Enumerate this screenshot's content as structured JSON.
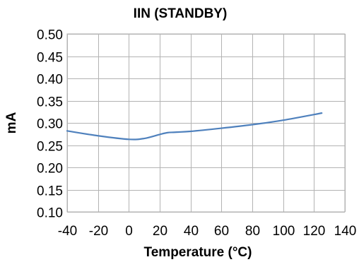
{
  "chart_data": {
    "type": "line",
    "title": "IIN (STANDBY)",
    "xlabel": "Temperature (°C)",
    "ylabel": "mA",
    "xlim": [
      -40,
      140
    ],
    "ylim": [
      0.1,
      0.5
    ],
    "xticks": [
      "-40",
      "-20",
      "0",
      "20",
      "40",
      "60",
      "80",
      "100",
      "120",
      "140"
    ],
    "yticks": [
      "0.10",
      "0.15",
      "0.20",
      "0.25",
      "0.30",
      "0.35",
      "0.40",
      "0.45",
      "0.50"
    ],
    "xtick_values": [
      -40,
      -20,
      0,
      20,
      40,
      60,
      80,
      100,
      120,
      140
    ],
    "ytick_values": [
      0.1,
      0.15,
      0.2,
      0.25,
      0.3,
      0.35,
      0.4,
      0.45,
      0.5
    ],
    "grid": true,
    "series": [
      {
        "color": "#4f81bd",
        "x": [
          -40,
          -20,
          0,
          10,
          20,
          25,
          30,
          40,
          60,
          80,
          100,
          125
        ],
        "y": [
          0.282,
          0.271,
          0.263,
          0.265,
          0.274,
          0.278,
          0.279,
          0.281,
          0.288,
          0.296,
          0.306,
          0.322
        ]
      }
    ]
  }
}
